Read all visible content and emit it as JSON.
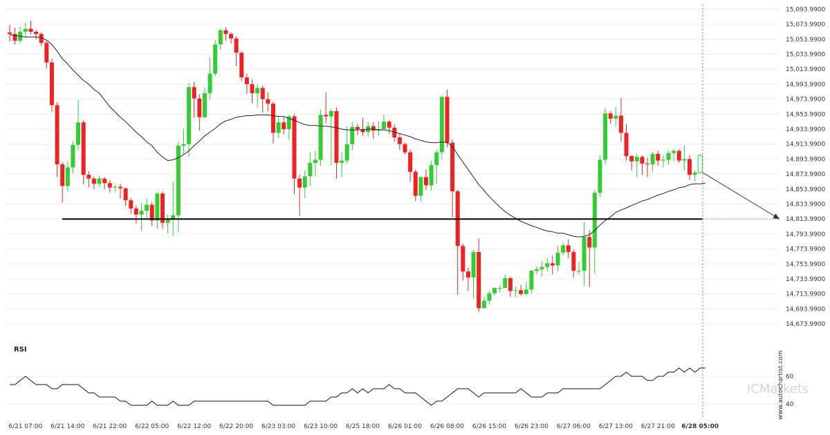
{
  "chart_data": {
    "type": "candlestick",
    "price_axis": {
      "ylim": [
        14663.99,
        15098.99
      ],
      "ticks": [
        "15,093.9900",
        "15,073.9900",
        "15,053.9900",
        "15,033.9900",
        "15,013.9900",
        "14,993.9900",
        "14,973.9900",
        "14,953.9900",
        "14,933.9900",
        "14,913.9900",
        "14,893.9900",
        "14,873.9900",
        "14,853.9900",
        "14,833.9900",
        "14,813.9900",
        "14,793.9900",
        "14,773.9900",
        "14,753.9900",
        "14,733.9900",
        "14,713.9900",
        "14,693.9900",
        "14,673.9900"
      ],
      "tick_values": [
        15093.99,
        15073.99,
        15053.99,
        15033.99,
        15013.99,
        14993.99,
        14973.99,
        14953.99,
        14933.99,
        14913.99,
        14893.99,
        14873.99,
        14853.99,
        14833.99,
        14813.99,
        14793.99,
        14773.99,
        14753.99,
        14733.99,
        14713.99,
        14693.99,
        14673.99
      ]
    },
    "x_axis": {
      "labels": [
        "6/21 07:00",
        "6/21 14:00",
        "6/21 22:00",
        "6/22 05:00",
        "6/22 12:00",
        "6/22 20:00",
        "6/23 03:00",
        "6/23 10:00",
        "6/25 18:00",
        "6/26 01:00",
        "6/26 08:00",
        "6/26 15:00",
        "6/26 23:00",
        "6/27 06:00",
        "6/27 13:00",
        "6/27 21:00",
        "6/28 05:00"
      ],
      "label_bar_index": [
        3,
        11,
        19,
        27,
        35,
        43,
        51,
        59,
        67,
        75,
        83,
        91,
        99,
        107,
        115,
        123,
        131
      ],
      "highlight": "6/28 05:00"
    },
    "candles": [
      [
        15063,
        15061,
        15073,
        15051
      ],
      [
        15061,
        15052,
        15069,
        15047
      ],
      [
        15052,
        15064,
        15071,
        15049
      ],
      [
        15064,
        15068,
        15076,
        15057
      ],
      [
        15068,
        15064,
        15079,
        15060
      ],
      [
        15064,
        15061,
        15067,
        15054
      ],
      [
        15061,
        15049,
        15063,
        15045
      ],
      [
        15049,
        15023,
        15052,
        15015
      ],
      [
        15023,
        14966,
        15028,
        14957
      ],
      [
        14966,
        14887,
        14970,
        14870
      ],
      [
        14887,
        14858,
        14890,
        14836
      ],
      [
        14858,
        14883,
        14891,
        14851
      ],
      [
        14883,
        14913,
        14918,
        14875
      ],
      [
        14913,
        14943,
        14973,
        14905
      ],
      [
        14943,
        14873,
        14946,
        14860
      ],
      [
        14873,
        14868,
        14878,
        14856
      ],
      [
        14868,
        14861,
        14871,
        14854
      ],
      [
        14861,
        14868,
        14872,
        14857
      ],
      [
        14868,
        14862,
        14870,
        14854
      ],
      [
        14862,
        14856,
        14866,
        14849
      ],
      [
        14856,
        14857,
        14860,
        14850
      ],
      [
        14857,
        14855,
        14861,
        14841
      ],
      [
        14855,
        14839,
        14856,
        14831
      ],
      [
        14839,
        14828,
        14842,
        14821
      ],
      [
        14828,
        14820,
        14832,
        14808
      ],
      [
        14820,
        14825,
        14835,
        14798
      ],
      [
        14825,
        14833,
        14842,
        14815
      ],
      [
        14833,
        14812,
        14837,
        14805
      ],
      [
        14812,
        14848,
        14850,
        14801
      ],
      [
        14848,
        14809,
        14851,
        14801
      ],
      [
        14809,
        14813,
        14820,
        14795
      ],
      [
        14813,
        14819,
        14864,
        14792
      ],
      [
        14819,
        14912,
        14917,
        14796
      ],
      [
        14912,
        14914,
        14935,
        14901
      ],
      [
        14914,
        14990,
        14996,
        14897
      ],
      [
        14990,
        14975,
        14997,
        14949
      ],
      [
        14975,
        14950,
        14981,
        14932
      ],
      [
        14950,
        14982,
        14990,
        14948
      ],
      [
        14982,
        15008,
        15030,
        14973
      ],
      [
        15008,
        15047,
        15053,
        15005
      ],
      [
        15047,
        15066,
        15068,
        15040
      ],
      [
        15066,
        15061,
        15070,
        15052
      ],
      [
        15061,
        15055,
        15063,
        15048
      ],
      [
        15055,
        15036,
        15058,
        15018
      ],
      [
        15036,
        15003,
        15038,
        14998
      ],
      [
        15003,
        14994,
        15008,
        14981
      ],
      [
        14994,
        14982,
        15000,
        14969
      ],
      [
        14982,
        14989,
        14994,
        14963
      ],
      [
        14989,
        14974,
        14992,
        14956
      ],
      [
        14974,
        14968,
        14983,
        14958
      ],
      [
        14968,
        14929,
        14971,
        14915
      ],
      [
        14929,
        14943,
        14951,
        14922
      ],
      [
        14943,
        14934,
        14950,
        14927
      ],
      [
        14934,
        14951,
        14953,
        14920
      ],
      [
        14951,
        14868,
        14954,
        14847
      ],
      [
        14868,
        14856,
        14873,
        14818
      ],
      [
        14856,
        14871,
        14879,
        14842
      ],
      [
        14871,
        14889,
        14903,
        14858
      ],
      [
        14889,
        14893,
        14905,
        14871
      ],
      [
        14893,
        14953,
        14960,
        14885
      ],
      [
        14953,
        14951,
        14983,
        14942
      ],
      [
        14951,
        14958,
        14961,
        14886
      ],
      [
        14958,
        14889,
        14963,
        14868
      ],
      [
        14889,
        14892,
        14904,
        14870
      ],
      [
        14892,
        14914,
        14938,
        14888
      ],
      [
        14914,
        14937,
        14944,
        14906
      ],
      [
        14937,
        14934,
        14941,
        14926
      ],
      [
        14934,
        14930,
        14949,
        14925
      ],
      [
        14930,
        14938,
        14944,
        14924
      ],
      [
        14938,
        14932,
        14943,
        14921
      ],
      [
        14932,
        14934,
        14944,
        14925
      ],
      [
        14934,
        14944,
        14953,
        14937
      ],
      [
        14944,
        14936,
        14946,
        14928
      ],
      [
        14936,
        14923,
        14940,
        14917
      ],
      [
        14923,
        14914,
        14927,
        14906
      ],
      [
        14914,
        14903,
        14916,
        14900
      ],
      [
        14903,
        14877,
        14907,
        14864
      ],
      [
        14877,
        14845,
        14880,
        14838
      ],
      [
        14845,
        14870,
        14871,
        14837
      ],
      [
        14870,
        14859,
        14880,
        14853
      ],
      [
        14859,
        14886,
        14892,
        14852
      ],
      [
        14886,
        14903,
        14907,
        14861
      ],
      [
        14903,
        14977,
        14979,
        14894
      ],
      [
        14977,
        14916,
        14987,
        14910
      ],
      [
        14916,
        14851,
        14920,
        14816
      ],
      [
        14851,
        14778,
        14853,
        14713
      ],
      [
        14778,
        14744,
        14781,
        14732
      ],
      [
        14744,
        14736,
        14749,
        14718
      ],
      [
        14736,
        14770,
        14773,
        14708
      ],
      [
        14770,
        14695,
        14788,
        14690
      ],
      [
        14695,
        14705,
        14710,
        14697
      ],
      [
        14705,
        14715,
        14718,
        14700
      ],
      [
        14715,
        14722,
        14723,
        14712
      ],
      [
        14722,
        14722,
        14726,
        14716
      ],
      [
        14722,
        14735,
        14740,
        14724
      ],
      [
        14735,
        14718,
        14737,
        14710
      ],
      [
        14718,
        14719,
        14724,
        14710
      ],
      [
        14719,
        14714,
        14726,
        14712
      ],
      [
        14714,
        14720,
        14730,
        14712
      ],
      [
        14720,
        14745,
        14746,
        14715
      ],
      [
        14745,
        14747,
        14751,
        14740
      ],
      [
        14747,
        14750,
        14758,
        14737
      ],
      [
        14750,
        14755,
        14762,
        14744
      ],
      [
        14755,
        14752,
        14765,
        14740
      ],
      [
        14752,
        14769,
        14778,
        14744
      ],
      [
        14769,
        14779,
        14783,
        14765
      ],
      [
        14779,
        14770,
        14787,
        14762
      ],
      [
        14770,
        14745,
        14773,
        14736
      ],
      [
        14745,
        14745,
        14757,
        14740
      ],
      [
        14745,
        14790,
        14810,
        14725
      ],
      [
        14790,
        14776,
        14799,
        14723
      ],
      [
        14776,
        14849,
        14853,
        14741
      ],
      [
        14849,
        14893,
        14899,
        14843
      ],
      [
        14893,
        14955,
        14962,
        14887
      ],
      [
        14955,
        14948,
        14958,
        14941
      ],
      [
        14948,
        14952,
        14964,
        14938
      ],
      [
        14952,
        14929,
        14976,
        14917
      ],
      [
        14929,
        14898,
        14941,
        14892
      ],
      [
        14898,
        14891,
        14899,
        14879
      ],
      [
        14891,
        14897,
        14901,
        14870
      ],
      [
        14897,
        14888,
        14899,
        14873
      ],
      [
        14888,
        14887,
        14896,
        14870
      ],
      [
        14887,
        14901,
        14904,
        14877
      ],
      [
        14901,
        14892,
        14905,
        14885
      ],
      [
        14892,
        14893,
        14899,
        14883
      ],
      [
        14893,
        14902,
        14905,
        14887
      ],
      [
        14902,
        14905,
        14908,
        14891
      ],
      [
        14905,
        14892,
        14907,
        14889
      ],
      [
        14892,
        14894,
        14912,
        14879
      ],
      [
        14894,
        14873,
        14899,
        14866
      ],
      [
        14873,
        14876,
        14879,
        14864
      ],
      [
        14876,
        14899,
        14901,
        14874
      ]
    ],
    "moving_average": [
      15060,
      15059,
      15058,
      15057,
      15057,
      15057,
      15056,
      15053,
      15047,
      15038,
      15028,
      15021,
      15013,
      15006,
      14999,
      14994,
      14987,
      14982,
      14973,
      14964,
      14957,
      14950,
      14944,
      14937,
      14930,
      14924,
      14917,
      14912,
      14903,
      14897,
      14892,
      14893,
      14896,
      14900,
      14905,
      14912,
      14918,
      14925,
      14930,
      14935,
      14941,
      14945,
      14947,
      14950,
      14951,
      14952,
      14952,
      14953,
      14953,
      14953,
      14952,
      14951,
      14951,
      14948,
      14946,
      14943,
      14940,
      14939,
      14939,
      14938,
      14938,
      14937,
      14936,
      14934,
      14933,
      14933,
      14933,
      14933,
      14934,
      14934,
      14933,
      14933,
      14932,
      14930,
      14928,
      14926,
      14924,
      14921,
      14919,
      14917,
      14916,
      14916,
      14917,
      14916,
      14911,
      14900,
      14890,
      14880,
      14870,
      14860,
      14852,
      14844,
      14837,
      14830,
      14824,
      14819,
      14815,
      14811,
      14808,
      14805,
      14803,
      14800,
      14798,
      14797,
      14795,
      14795,
      14793,
      14791,
      14790,
      14791,
      14793,
      14799,
      14806,
      14812,
      14817,
      14823,
      14826,
      14829,
      14832,
      14835,
      14838,
      14840,
      14843,
      14846,
      14848,
      14851,
      14853,
      14856,
      14857,
      14860,
      14861,
      14861,
      14862
    ],
    "support_level": 14813.99,
    "forecast": {
      "target": 14813.99
    },
    "rsi": {
      "title": "RSI",
      "ylim": [
        30,
        75
      ],
      "ticks": [
        "60",
        "40"
      ],
      "tick_values": [
        60,
        40
      ],
      "values": [
        54,
        54,
        57,
        60,
        57,
        54,
        54,
        54,
        51,
        51,
        54,
        54,
        54,
        54,
        51,
        48,
        48,
        45,
        45,
        45,
        45,
        42,
        42,
        39,
        39,
        39,
        39,
        42,
        39,
        39,
        39,
        42,
        39,
        39,
        39,
        42,
        42,
        42,
        42,
        42,
        42,
        42,
        42,
        42,
        42,
        42,
        42,
        42,
        42,
        42,
        39,
        39,
        39,
        39,
        39,
        39,
        39,
        42,
        42,
        42,
        42,
        45,
        45,
        48,
        48,
        51,
        48,
        51,
        48,
        51,
        51,
        51,
        54,
        51,
        51,
        48,
        48,
        48,
        45,
        42,
        39,
        42,
        42,
        45,
        48,
        51,
        51,
        51,
        48,
        45,
        48,
        48,
        48,
        48,
        48,
        48,
        48,
        51,
        48,
        45,
        45,
        45,
        48,
        48,
        48,
        51,
        51,
        51,
        51,
        51,
        51,
        51,
        51,
        54,
        57,
        60,
        60,
        63,
        60,
        60,
        60,
        57,
        57,
        60,
        60,
        63,
        63,
        66,
        63,
        66,
        63,
        66,
        66
      ]
    }
  },
  "brand_text": "ICMarkets",
  "watermark_text": "www.autochartist.com",
  "colors": {
    "bull": "#33cc33",
    "bear": "#ee2222",
    "ma": "#222222",
    "support": "#000000",
    "grid": "#ececec",
    "rsi": "#111111",
    "marker": "#999999"
  }
}
